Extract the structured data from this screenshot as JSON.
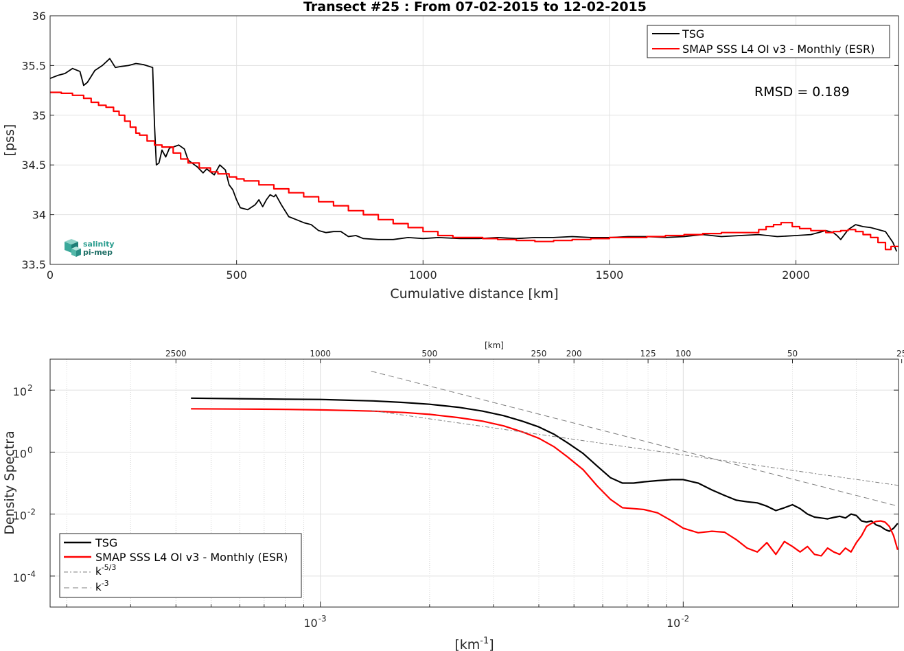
{
  "logo": {
    "text_line1": "salinity",
    "text_line2": "pi-mep"
  },
  "chart_data": [
    {
      "type": "line",
      "title": "Transect #25 : From 07-02-2015 to 12-02-2015",
      "xlabel": "Cumulative distance [km]",
      "ylabel": "[pss]",
      "xlim": [
        0,
        2275
      ],
      "ylim": [
        33.5,
        36
      ],
      "xticks": [
        0,
        500,
        1000,
        1500,
        2000
      ],
      "yticks": [
        33.5,
        34,
        34.5,
        35,
        35.5,
        36
      ],
      "xtick_labels": [
        "0",
        "500",
        "1000",
        "1500",
        "2000"
      ],
      "ytick_labels": [
        "33.5",
        "34",
        "34.5",
        "35",
        "35.5",
        "36"
      ],
      "grid": true,
      "legend_position": "top-right",
      "annotation": "RMSD = 0.189",
      "series": [
        {
          "name": "TSG",
          "color": "#000000",
          "step": false,
          "x": [
            0,
            20,
            40,
            60,
            80,
            90,
            100,
            120,
            140,
            160,
            175,
            190,
            210,
            230,
            250,
            275,
            280,
            285,
            292,
            300,
            310,
            320,
            330,
            345,
            360,
            370,
            380,
            395,
            410,
            420,
            440,
            455,
            470,
            480,
            490,
            500,
            510,
            530,
            550,
            560,
            570,
            580,
            590,
            600,
            605,
            620,
            640,
            660,
            680,
            700,
            720,
            740,
            760,
            780,
            800,
            820,
            840,
            880,
            920,
            960,
            1000,
            1040,
            1100,
            1150,
            1200,
            1250,
            1300,
            1350,
            1400,
            1450,
            1500,
            1550,
            1600,
            1650,
            1700,
            1750,
            1800,
            1850,
            1900,
            1950,
            2000,
            2040,
            2060,
            2080,
            2100,
            2110,
            2120,
            2140,
            2160,
            2180,
            2200,
            2220,
            2240,
            2260,
            2270
          ],
          "y": [
            35.37,
            35.4,
            35.42,
            35.47,
            35.44,
            35.3,
            35.33,
            35.45,
            35.5,
            35.57,
            35.48,
            35.49,
            35.5,
            35.52,
            35.51,
            35.48,
            34.9,
            34.5,
            34.52,
            34.65,
            34.58,
            34.67,
            34.68,
            34.7,
            34.66,
            34.55,
            34.52,
            34.48,
            34.42,
            34.46,
            34.4,
            34.5,
            34.45,
            34.3,
            34.25,
            34.15,
            34.07,
            34.05,
            34.1,
            34.15,
            34.08,
            34.15,
            34.2,
            34.18,
            34.2,
            34.1,
            33.98,
            33.95,
            33.92,
            33.9,
            33.84,
            33.82,
            33.83,
            33.83,
            33.78,
            33.79,
            33.76,
            33.75,
            33.75,
            33.77,
            33.76,
            33.77,
            33.76,
            33.76,
            33.77,
            33.76,
            33.77,
            33.77,
            33.78,
            33.77,
            33.77,
            33.78,
            33.78,
            33.77,
            33.78,
            33.8,
            33.78,
            33.79,
            33.8,
            33.78,
            33.79,
            33.8,
            33.82,
            33.84,
            33.82,
            33.79,
            33.75,
            33.85,
            33.9,
            33.88,
            33.87,
            33.85,
            33.83,
            33.72,
            33.63
          ]
        },
        {
          "name": "SMAP SSS L4 OI v3 - Monthly (ESR)",
          "color": "#ff0000",
          "step": true,
          "x": [
            0,
            30,
            60,
            90,
            110,
            130,
            150,
            170,
            185,
            200,
            215,
            230,
            240,
            260,
            280,
            300,
            330,
            350,
            370,
            400,
            430,
            450,
            480,
            500,
            520,
            560,
            600,
            640,
            680,
            720,
            760,
            800,
            840,
            880,
            920,
            960,
            1000,
            1040,
            1080,
            1120,
            1160,
            1200,
            1250,
            1300,
            1350,
            1400,
            1450,
            1500,
            1550,
            1600,
            1650,
            1700,
            1750,
            1800,
            1850,
            1900,
            1920,
            1940,
            1960,
            1990,
            2010,
            2040,
            2080,
            2100,
            2120,
            2140,
            2160,
            2180,
            2200,
            2220,
            2240,
            2255,
            2275
          ],
          "y": [
            35.23,
            35.22,
            35.2,
            35.17,
            35.13,
            35.1,
            35.08,
            35.04,
            35.0,
            34.94,
            34.88,
            34.82,
            34.8,
            34.74,
            34.7,
            34.68,
            34.62,
            34.56,
            34.52,
            34.47,
            34.43,
            34.41,
            34.38,
            34.36,
            34.34,
            34.3,
            34.26,
            34.22,
            34.18,
            34.13,
            34.09,
            34.04,
            34.0,
            33.95,
            33.91,
            33.87,
            33.83,
            33.79,
            33.77,
            33.77,
            33.76,
            33.75,
            33.74,
            33.73,
            33.74,
            33.75,
            33.76,
            33.77,
            33.77,
            33.78,
            33.79,
            33.8,
            33.81,
            33.82,
            33.82,
            33.85,
            33.88,
            33.9,
            33.92,
            33.88,
            33.86,
            33.84,
            33.82,
            33.83,
            33.84,
            33.85,
            33.83,
            33.8,
            33.77,
            33.72,
            33.65,
            33.68,
            33.68
          ]
        }
      ]
    },
    {
      "type": "line",
      "top_xlabel": "[km]",
      "xlabel": "[km-1]",
      "xlabel_parts": [
        "[km",
        "-1",
        "]"
      ],
      "ylabel": "Density Spectra",
      "xscale": "log",
      "yscale": "log",
      "xlim": [
        0.00018,
        0.0392
      ],
      "ylim": [
        1e-05,
        1000
      ],
      "xticks": [
        0.001,
        0.01
      ],
      "xtick_labels": [
        {
          "base": "10",
          "exp": "-3"
        },
        {
          "base": "10",
          "exp": "-2"
        }
      ],
      "yticks": [
        0.0001,
        0.01,
        1,
        100
      ],
      "ytick_labels": [
        {
          "base": "10",
          "exp": "-4"
        },
        {
          "base": "10",
          "exp": "-2"
        },
        {
          "base": "10",
          "exp": "0"
        },
        {
          "base": "10",
          "exp": "2"
        }
      ],
      "top_ticks_km": [
        "2500",
        "1000",
        "500",
        "250",
        "200",
        "125",
        "100",
        "50",
        "25"
      ],
      "grid": true,
      "legend_position": "bottom-left",
      "series": [
        {
          "name": "TSG",
          "color": "#000000",
          "dash": "",
          "x": [
            0.00044,
            0.0006,
            0.0008,
            0.001,
            0.0012,
            0.0014,
            0.0017,
            0.002,
            0.0024,
            0.0028,
            0.0032,
            0.0036,
            0.004,
            0.0044,
            0.0048,
            0.0053,
            0.0058,
            0.0063,
            0.0068,
            0.0073,
            0.0078,
            0.0085,
            0.0093,
            0.01,
            0.011,
            0.012,
            0.013,
            0.014,
            0.015,
            0.016,
            0.017,
            0.018,
            0.019,
            0.02,
            0.021,
            0.022,
            0.023,
            0.024,
            0.025,
            0.026,
            0.027,
            0.028,
            0.029,
            0.03,
            0.031,
            0.032,
            0.033,
            0.034,
            0.035,
            0.036,
            0.037,
            0.038,
            0.039
          ],
          "y": [
            55,
            53,
            51,
            50,
            47,
            45,
            40,
            35,
            28,
            21,
            15,
            10,
            6.5,
            3.8,
            2,
            0.9,
            0.35,
            0.15,
            0.1,
            0.1,
            0.11,
            0.12,
            0.13,
            0.13,
            0.1,
            0.06,
            0.04,
            0.028,
            0.025,
            0.023,
            0.018,
            0.013,
            0.016,
            0.02,
            0.015,
            0.01,
            0.008,
            0.0075,
            0.007,
            0.0078,
            0.0085,
            0.0075,
            0.01,
            0.009,
            0.006,
            0.0055,
            0.006,
            0.0045,
            0.004,
            0.0032,
            0.0028,
            0.0035,
            0.005
          ]
        },
        {
          "name": "SMAP SSS L4 OI v3 - Monthly (ESR)",
          "color": "#ff0000",
          "dash": "",
          "x": [
            0.00044,
            0.0006,
            0.0008,
            0.001,
            0.0012,
            0.0014,
            0.0017,
            0.002,
            0.0024,
            0.0028,
            0.0032,
            0.0036,
            0.004,
            0.0044,
            0.0048,
            0.0053,
            0.0058,
            0.0063,
            0.0068,
            0.0073,
            0.0078,
            0.0085,
            0.0093,
            0.01,
            0.011,
            0.012,
            0.013,
            0.014,
            0.015,
            0.016,
            0.017,
            0.018,
            0.019,
            0.02,
            0.021,
            0.022,
            0.023,
            0.024,
            0.025,
            0.026,
            0.027,
            0.028,
            0.029,
            0.03,
            0.031,
            0.032,
            0.033,
            0.034,
            0.035,
            0.036,
            0.037,
            0.038,
            0.039
          ],
          "y": [
            25,
            24.5,
            24,
            23,
            22,
            21,
            19,
            16.5,
            13,
            10,
            7,
            4.5,
            2.8,
            1.5,
            0.7,
            0.27,
            0.08,
            0.03,
            0.016,
            0.015,
            0.014,
            0.011,
            0.006,
            0.0035,
            0.0025,
            0.0028,
            0.0026,
            0.0015,
            0.0008,
            0.0006,
            0.0012,
            0.0005,
            0.0013,
            0.0009,
            0.0006,
            0.0009,
            0.0005,
            0.00045,
            0.0008,
            0.0006,
            0.0005,
            0.0008,
            0.0006,
            0.0012,
            0.002,
            0.004,
            0.005,
            0.0058,
            0.006,
            0.0055,
            0.004,
            0.002,
            0.0007
          ]
        },
        {
          "name": "k-5/3",
          "name_parts": [
            "k",
            "-5/3"
          ],
          "color": "#7f7f7f",
          "dash": "6 3 2 3",
          "x": [
            0.00138,
            0.0392
          ],
          "y": [
            22,
            0.084
          ]
        },
        {
          "name": "k-3",
          "name_parts": [
            "k",
            "-3"
          ],
          "color": "#7f7f7f",
          "dash": "8 5",
          "x": [
            0.00138,
            0.0392
          ],
          "y": [
            409,
            0.0179
          ]
        }
      ]
    }
  ]
}
